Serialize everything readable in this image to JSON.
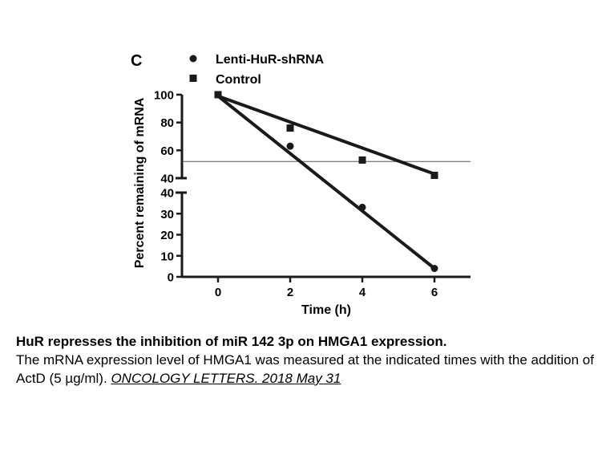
{
  "panel_label": "C",
  "chart_data": {
    "type": "scatter",
    "xlabel": "Time (h)",
    "ylabel": "Percent remaining of mRNA",
    "x_ticks": [
      0,
      2,
      4,
      6
    ],
    "xlim": [
      -1,
      7
    ],
    "y_axis_break": true,
    "ylim_lower": [
      0,
      40
    ],
    "ylim_upper": [
      40,
      100
    ],
    "y_ticks_lower": [
      0,
      10,
      20,
      30,
      40
    ],
    "y_ticks_upper": [
      40,
      60,
      80,
      100
    ],
    "grid": false,
    "legend_position": "top",
    "reference_line_y": 52,
    "series": [
      {
        "name": "Lenti-HuR-shRNA",
        "marker": "circle",
        "x": [
          0,
          2,
          4,
          6
        ],
        "y": [
          100,
          63,
          33,
          4
        ],
        "fit": {
          "x": [
            0,
            6
          ],
          "y": [
            99,
            4
          ]
        }
      },
      {
        "name": "Control",
        "marker": "square",
        "x": [
          0,
          2,
          4,
          6
        ],
        "y": [
          100,
          76,
          53,
          42
        ],
        "fit": {
          "x": [
            0,
            6
          ],
          "y": [
            99,
            43
          ]
        }
      }
    ]
  },
  "caption": {
    "title": "HuR represses the inhibition of miR 142 3p on HMGA1 expression.",
    "body": "The mRNA expression level of HMGA1 was measured at the indicated times with the addition of ActD (5 µg/ml).",
    "citation": "ONCOLOGY LETTERS. 2018 May 31"
  }
}
